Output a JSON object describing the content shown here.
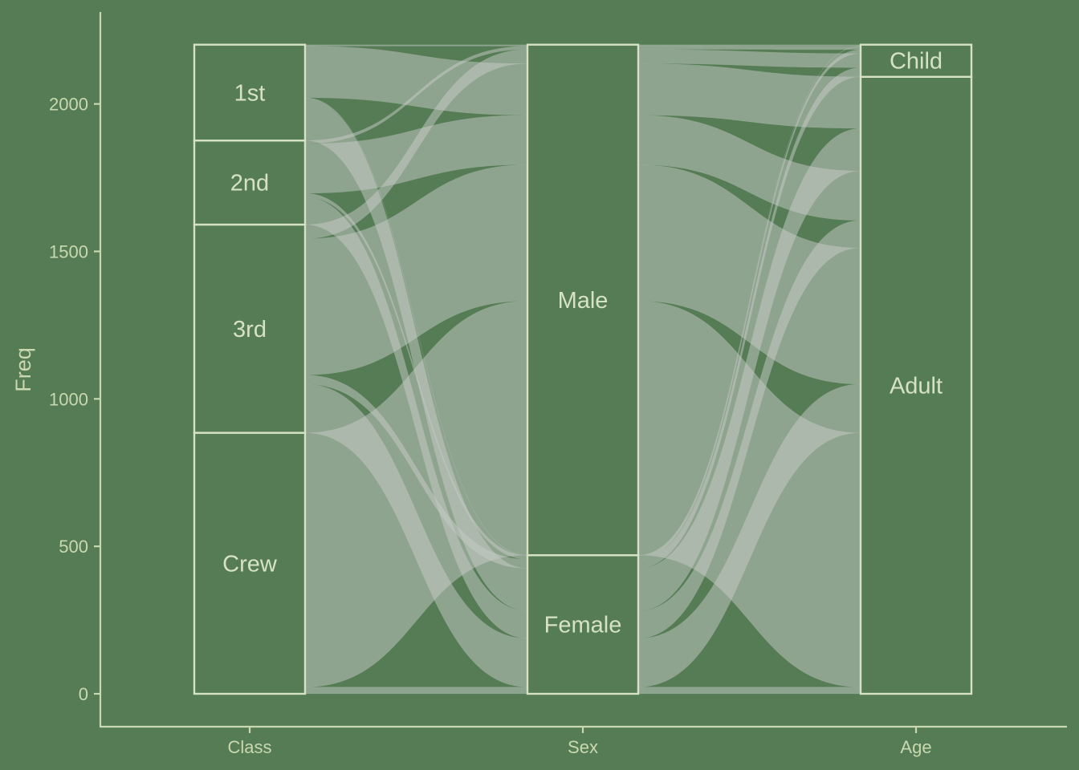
{
  "chart_data": {
    "type": "alluvial",
    "title": "",
    "ylabel": "Freq",
    "xlabel": "",
    "ylim": [
      -110,
      2310
    ],
    "yticks": [
      0,
      500,
      1000,
      1500,
      2000
    ],
    "axes": [
      "Class",
      "Sex",
      "Age"
    ],
    "strata": {
      "Class": [
        {
          "label": "Crew",
          "value": 885
        },
        {
          "label": "3rd",
          "value": 706
        },
        {
          "label": "2nd",
          "value": 285
        },
        {
          "label": "1st",
          "value": 325
        }
      ],
      "Sex": [
        {
          "label": "Female",
          "value": 470
        },
        {
          "label": "Male",
          "value": 1731
        }
      ],
      "Age": [
        {
          "label": "Adult",
          "value": 2092
        },
        {
          "label": "Child",
          "value": 109
        }
      ]
    },
    "flows": [
      {
        "Class": "1st",
        "Sex": "Male",
        "Age": "Child",
        "Freq": 5
      },
      {
        "Class": "2nd",
        "Sex": "Male",
        "Age": "Child",
        "Freq": 11
      },
      {
        "Class": "3rd",
        "Sex": "Male",
        "Age": "Child",
        "Freq": 48
      },
      {
        "Class": "1st",
        "Sex": "Female",
        "Age": "Child",
        "Freq": 1
      },
      {
        "Class": "2nd",
        "Sex": "Female",
        "Age": "Child",
        "Freq": 13
      },
      {
        "Class": "3rd",
        "Sex": "Female",
        "Age": "Child",
        "Freq": 31
      },
      {
        "Class": "1st",
        "Sex": "Male",
        "Age": "Adult",
        "Freq": 175
      },
      {
        "Class": "2nd",
        "Sex": "Male",
        "Age": "Adult",
        "Freq": 168
      },
      {
        "Class": "3rd",
        "Sex": "Male",
        "Age": "Adult",
        "Freq": 462
      },
      {
        "Class": "Crew",
        "Sex": "Male",
        "Age": "Adult",
        "Freq": 862
      },
      {
        "Class": "1st",
        "Sex": "Female",
        "Age": "Adult",
        "Freq": 144
      },
      {
        "Class": "2nd",
        "Sex": "Female",
        "Age": "Adult",
        "Freq": 93
      },
      {
        "Class": "3rd",
        "Sex": "Female",
        "Age": "Adult",
        "Freq": 165
      },
      {
        "Class": "Crew",
        "Sex": "Female",
        "Age": "Adult",
        "Freq": 23
      }
    ],
    "colors": {
      "background": "#557c55",
      "stratum_outline": "#d6e2c4",
      "text": "#c9d8b0",
      "flow": "#c7ccc7"
    }
  }
}
